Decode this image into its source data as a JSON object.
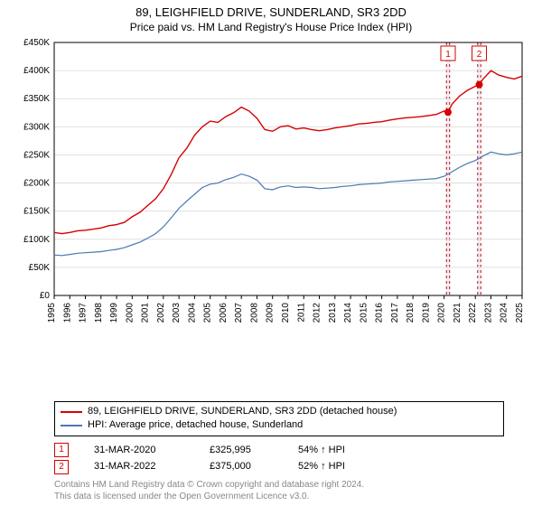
{
  "title": "89, LEIGHFIELD DRIVE, SUNDERLAND, SR3 2DD",
  "subtitle": "Price paid vs. HM Land Registry's House Price Index (HPI)",
  "chart": {
    "type": "line",
    "background_color": "#ffffff",
    "grid_color": "#e0e0e0",
    "axis_color": "#000000",
    "axis_font_size": 10,
    "y": {
      "min": 0,
      "max": 450000,
      "step": 50000,
      "format_prefix": "£",
      "format_suffix": "K",
      "ticks": [
        "£0",
        "£50K",
        "£100K",
        "£150K",
        "£200K",
        "£250K",
        "£300K",
        "£350K",
        "£400K",
        "£450K"
      ]
    },
    "x": {
      "min": 1995,
      "max": 2025,
      "step": 1,
      "ticks": [
        "1995",
        "1996",
        "1997",
        "1998",
        "1999",
        "2000",
        "2001",
        "2002",
        "2003",
        "2004",
        "2005",
        "2006",
        "2007",
        "2008",
        "2009",
        "2010",
        "2011",
        "2012",
        "2013",
        "2014",
        "2015",
        "2016",
        "2017",
        "2018",
        "2019",
        "2020",
        "2021",
        "2022",
        "2023",
        "2024",
        "2025"
      ]
    },
    "series": [
      {
        "id": "price_paid",
        "label": "89, LEIGHFIELD DRIVE, SUNDERLAND, SR3 2DD (detached house)",
        "color": "#d60000",
        "line_width": 1.4,
        "data": [
          [
            1995,
            112000
          ],
          [
            1995.5,
            110000
          ],
          [
            1996,
            112000
          ],
          [
            1996.5,
            115000
          ],
          [
            1997,
            116000
          ],
          [
            1997.5,
            118000
          ],
          [
            1998,
            120000
          ],
          [
            1998.5,
            124000
          ],
          [
            1999,
            126000
          ],
          [
            1999.5,
            130000
          ],
          [
            2000,
            140000
          ],
          [
            2000.5,
            148000
          ],
          [
            2001,
            160000
          ],
          [
            2001.5,
            172000
          ],
          [
            2002,
            190000
          ],
          [
            2002.5,
            215000
          ],
          [
            2003,
            245000
          ],
          [
            2003.5,
            262000
          ],
          [
            2004,
            285000
          ],
          [
            2004.5,
            300000
          ],
          [
            2005,
            310000
          ],
          [
            2005.5,
            308000
          ],
          [
            2006,
            318000
          ],
          [
            2006.5,
            325000
          ],
          [
            2007,
            335000
          ],
          [
            2007.5,
            328000
          ],
          [
            2008,
            315000
          ],
          [
            2008.5,
            295000
          ],
          [
            2009,
            292000
          ],
          [
            2009.5,
            300000
          ],
          [
            2010,
            302000
          ],
          [
            2010.5,
            296000
          ],
          [
            2011,
            298000
          ],
          [
            2011.5,
            295000
          ],
          [
            2012,
            293000
          ],
          [
            2012.5,
            295000
          ],
          [
            2013,
            298000
          ],
          [
            2013.5,
            300000
          ],
          [
            2014,
            302000
          ],
          [
            2014.5,
            305000
          ],
          [
            2015,
            306000
          ],
          [
            2015.5,
            308000
          ],
          [
            2016,
            309000
          ],
          [
            2016.5,
            312000
          ],
          [
            2017,
            314000
          ],
          [
            2017.5,
            316000
          ],
          [
            2018,
            317000
          ],
          [
            2018.5,
            318000
          ],
          [
            2019,
            320000
          ],
          [
            2019.5,
            322000
          ],
          [
            2020,
            328000
          ],
          [
            2020.25,
            325995
          ],
          [
            2020.5,
            340000
          ],
          [
            2021,
            355000
          ],
          [
            2021.5,
            365000
          ],
          [
            2022,
            372000
          ],
          [
            2022.25,
            375000
          ],
          [
            2022.5,
            385000
          ],
          [
            2023,
            400000
          ],
          [
            2023.5,
            392000
          ],
          [
            2024,
            388000
          ],
          [
            2024.5,
            385000
          ],
          [
            2025,
            390000
          ]
        ]
      },
      {
        "id": "hpi",
        "label": "HPI: Average price, detached house, Sunderland",
        "color": "#4a78b5",
        "line_width": 1.2,
        "data": [
          [
            1995,
            72000
          ],
          [
            1995.5,
            71000
          ],
          [
            1996,
            73000
          ],
          [
            1996.5,
            75000
          ],
          [
            1997,
            76000
          ],
          [
            1997.5,
            77000
          ],
          [
            1998,
            78000
          ],
          [
            1998.5,
            80000
          ],
          [
            1999,
            82000
          ],
          [
            1999.5,
            85000
          ],
          [
            2000,
            90000
          ],
          [
            2000.5,
            95000
          ],
          [
            2001,
            102000
          ],
          [
            2001.5,
            110000
          ],
          [
            2002,
            122000
          ],
          [
            2002.5,
            138000
          ],
          [
            2003,
            155000
          ],
          [
            2003.5,
            168000
          ],
          [
            2004,
            180000
          ],
          [
            2004.5,
            192000
          ],
          [
            2005,
            198000
          ],
          [
            2005.5,
            200000
          ],
          [
            2006,
            206000
          ],
          [
            2006.5,
            210000
          ],
          [
            2007,
            216000
          ],
          [
            2007.5,
            212000
          ],
          [
            2008,
            205000
          ],
          [
            2008.5,
            190000
          ],
          [
            2009,
            188000
          ],
          [
            2009.5,
            193000
          ],
          [
            2010,
            195000
          ],
          [
            2010.5,
            192000
          ],
          [
            2011,
            193000
          ],
          [
            2011.5,
            192000
          ],
          [
            2012,
            190000
          ],
          [
            2012.5,
            191000
          ],
          [
            2013,
            192000
          ],
          [
            2013.5,
            194000
          ],
          [
            2014,
            195000
          ],
          [
            2014.5,
            197000
          ],
          [
            2015,
            198000
          ],
          [
            2015.5,
            199000
          ],
          [
            2016,
            200000
          ],
          [
            2016.5,
            202000
          ],
          [
            2017,
            203000
          ],
          [
            2017.5,
            204000
          ],
          [
            2018,
            205000
          ],
          [
            2018.5,
            206000
          ],
          [
            2019,
            207000
          ],
          [
            2019.5,
            208000
          ],
          [
            2020,
            212000
          ],
          [
            2020.5,
            220000
          ],
          [
            2021,
            228000
          ],
          [
            2021.5,
            235000
          ],
          [
            2022,
            240000
          ],
          [
            2022.5,
            248000
          ],
          [
            2023,
            255000
          ],
          [
            2023.5,
            252000
          ],
          [
            2024,
            250000
          ],
          [
            2024.5,
            252000
          ],
          [
            2025,
            255000
          ]
        ]
      }
    ],
    "markers": [
      {
        "n": "1",
        "x": 2020.25,
        "y": 325995,
        "color": "#d60000"
      },
      {
        "n": "2",
        "x": 2022.25,
        "y": 375000,
        "color": "#d60000"
      }
    ],
    "marker_chip_border": "#d60000",
    "marker_chip_text": "#d60000",
    "marker_dot_fill": "#d60000",
    "highlight_bands": [
      {
        "from": 2020.15,
        "to": 2020.35,
        "fill": "#dbe7f6",
        "border": "#d60000"
      },
      {
        "from": 2022.15,
        "to": 2022.35,
        "fill": "#dbe7f6",
        "border": "#d60000"
      }
    ]
  },
  "legend": {
    "rows": [
      {
        "color": "#d60000",
        "label": "89, LEIGHFIELD DRIVE, SUNDERLAND, SR3 2DD (detached house)"
      },
      {
        "color": "#4a78b5",
        "label": "HPI: Average price, detached house, Sunderland"
      }
    ]
  },
  "marker_table": [
    {
      "n": "1",
      "date": "31-MAR-2020",
      "price": "£325,995",
      "comparison": "54% ↑ HPI"
    },
    {
      "n": "2",
      "date": "31-MAR-2022",
      "price": "£375,000",
      "comparison": "52% ↑ HPI"
    }
  ],
  "copyright": [
    "Contains HM Land Registry data © Crown copyright and database right 2024.",
    "This data is licensed under the Open Government Licence v3.0."
  ]
}
